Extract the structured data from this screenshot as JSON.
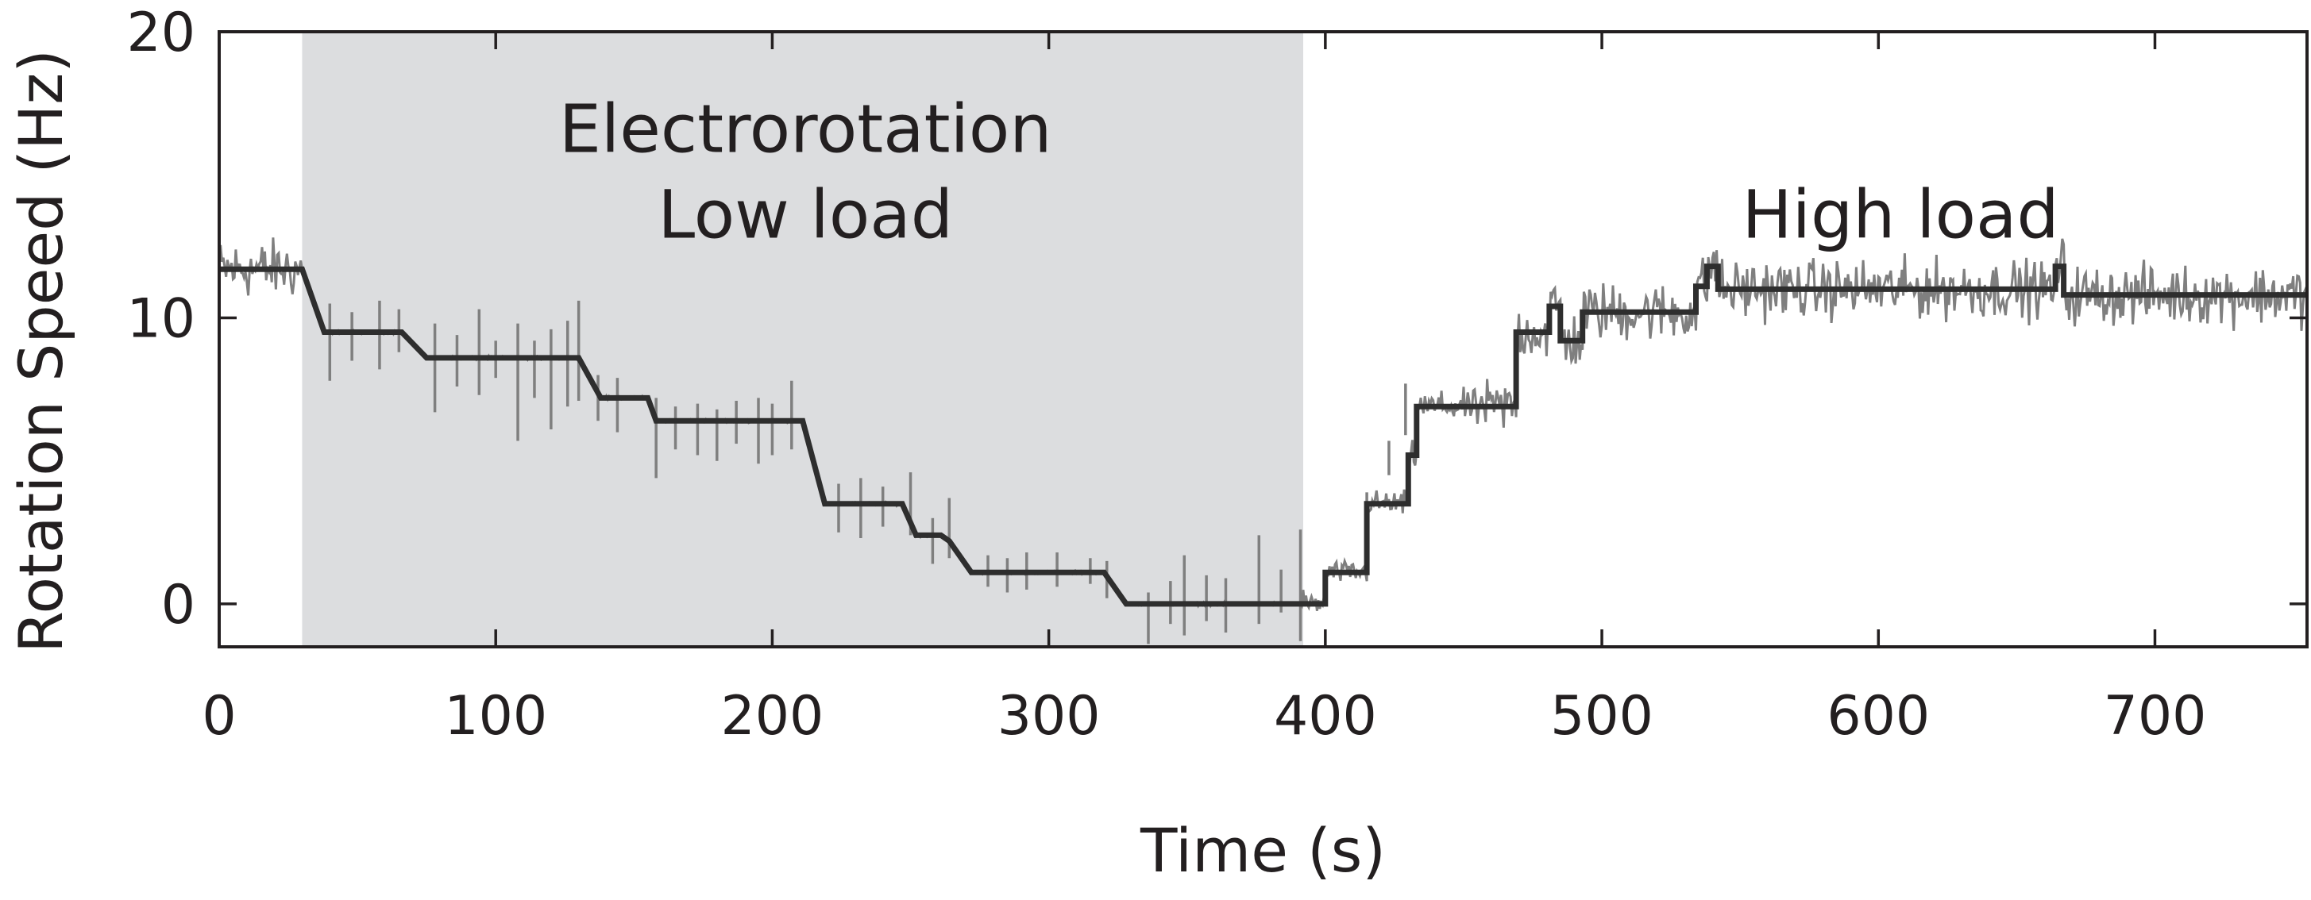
{
  "chart_data": {
    "type": "line",
    "xlabel": "Time (s)",
    "ylabel": "Rotation Speed (Hz)",
    "xlim": [
      0,
      755
    ],
    "ylim": [
      -1.5,
      20
    ],
    "xticks": [
      0,
      100,
      200,
      300,
      400,
      500,
      600,
      700
    ],
    "yticks": [
      0,
      10,
      20
    ],
    "grid": false,
    "shaded_region": {
      "x_start": 30,
      "x_end": 392,
      "color": "#dcdddf"
    },
    "annotations": [
      {
        "text": "Electrorotation",
        "x": 212,
        "y": 15.8
      },
      {
        "text": "Low load",
        "x": 212,
        "y": 12.8
      },
      {
        "text": "High load",
        "x": 608,
        "y": 12.8
      }
    ],
    "series": [
      {
        "style": "noisy-trace",
        "color": "#7f7f7f",
        "noise_amplitude": [
          {
            "from": 0,
            "to": 30,
            "amp": 0.9
          },
          {
            "from": 30,
            "to": 392,
            "amp": 0.05
          },
          {
            "from": 392,
            "to": 455,
            "amp": 0.6
          },
          {
            "from": 455,
            "to": 755,
            "amp": 0.9
          }
        ],
        "spikes": [
          {
            "x": 40,
            "lo": 7.8,
            "hi": 10.5
          },
          {
            "x": 48,
            "lo": 8.5,
            "hi": 10.2
          },
          {
            "x": 58,
            "lo": 8.2,
            "hi": 10.6
          },
          {
            "x": 65,
            "lo": 8.8,
            "hi": 10.3
          },
          {
            "x": 78,
            "lo": 6.7,
            "hi": 9.8
          },
          {
            "x": 86,
            "lo": 7.6,
            "hi": 9.4
          },
          {
            "x": 94,
            "lo": 7.3,
            "hi": 10.3
          },
          {
            "x": 100,
            "lo": 7.9,
            "hi": 9.2
          },
          {
            "x": 108,
            "lo": 5.7,
            "hi": 9.8
          },
          {
            "x": 114,
            "lo": 7.2,
            "hi": 9.2
          },
          {
            "x": 120,
            "lo": 6.1,
            "hi": 9.6
          },
          {
            "x": 126,
            "lo": 6.9,
            "hi": 9.9
          },
          {
            "x": 130,
            "lo": 7.1,
            "hi": 10.6
          },
          {
            "x": 137,
            "lo": 6.4,
            "hi": 8.0
          },
          {
            "x": 144,
            "lo": 6.0,
            "hi": 7.9
          },
          {
            "x": 158,
            "lo": 4.4,
            "hi": 7.2
          },
          {
            "x": 165,
            "lo": 5.4,
            "hi": 6.9
          },
          {
            "x": 173,
            "lo": 5.2,
            "hi": 7.0
          },
          {
            "x": 180,
            "lo": 5.0,
            "hi": 6.8
          },
          {
            "x": 187,
            "lo": 5.6,
            "hi": 7.1
          },
          {
            "x": 195,
            "lo": 4.9,
            "hi": 7.2
          },
          {
            "x": 200,
            "lo": 5.2,
            "hi": 7.0
          },
          {
            "x": 207,
            "lo": 5.4,
            "hi": 7.8
          },
          {
            "x": 224,
            "lo": 2.5,
            "hi": 4.2
          },
          {
            "x": 232,
            "lo": 2.3,
            "hi": 4.4
          },
          {
            "x": 240,
            "lo": 2.7,
            "hi": 4.1
          },
          {
            "x": 250,
            "lo": 2.4,
            "hi": 4.6
          },
          {
            "x": 258,
            "lo": 1.4,
            "hi": 3.0
          },
          {
            "x": 264,
            "lo": 1.6,
            "hi": 3.7
          },
          {
            "x": 278,
            "lo": 0.6,
            "hi": 1.7
          },
          {
            "x": 285,
            "lo": 0.4,
            "hi": 1.6
          },
          {
            "x": 292,
            "lo": 0.5,
            "hi": 1.8
          },
          {
            "x": 303,
            "lo": 0.6,
            "hi": 1.8
          },
          {
            "x": 315,
            "lo": 0.7,
            "hi": 1.6
          },
          {
            "x": 321,
            "lo": 0.2,
            "hi": 1.5
          },
          {
            "x": 336,
            "lo": -1.4,
            "hi": 0.4
          },
          {
            "x": 344,
            "lo": -0.7,
            "hi": 0.8
          },
          {
            "x": 349,
            "lo": -1.1,
            "hi": 1.7
          },
          {
            "x": 357,
            "lo": -0.6,
            "hi": 1.0
          },
          {
            "x": 364,
            "lo": -1.0,
            "hi": 0.9
          },
          {
            "x": 376,
            "lo": -0.7,
            "hi": 2.4
          },
          {
            "x": 384,
            "lo": -0.3,
            "hi": 1.2
          },
          {
            "x": 391,
            "lo": -1.3,
            "hi": 2.6
          },
          {
            "x": 415,
            "lo": 2.2,
            "hi": 3.9
          },
          {
            "x": 423,
            "lo": 4.5,
            "hi": 5.7
          },
          {
            "x": 429,
            "lo": 5.9,
            "hi": 7.7
          }
        ]
      },
      {
        "style": "step-fit",
        "color": "#2e2e2e",
        "x": [
          0,
          30,
          38,
          66,
          75,
          130,
          138,
          155,
          158,
          211,
          219,
          247,
          252,
          261,
          264,
          272,
          278,
          320,
          328,
          395,
          400,
          400,
          415,
          415,
          430,
          430,
          433,
          433,
          469,
          469,
          481,
          481,
          485,
          485,
          493,
          493,
          534,
          534,
          538,
          538,
          542,
          542,
          664,
          664,
          667,
          667,
          755
        ],
        "y": [
          11.7,
          11.7,
          9.5,
          9.5,
          8.6,
          8.6,
          7.2,
          7.2,
          6.4,
          6.4,
          3.5,
          3.5,
          2.4,
          2.4,
          2.2,
          1.1,
          1.1,
          1.1,
          0.0,
          0.0,
          0.0,
          1.1,
          1.1,
          3.5,
          3.5,
          5.2,
          5.2,
          6.9,
          6.9,
          9.5,
          9.5,
          10.4,
          10.4,
          9.2,
          9.2,
          10.2,
          10.2,
          11.1,
          11.1,
          11.8,
          11.8,
          11.0,
          11.0,
          11.8,
          11.8,
          10.8,
          10.8
        ]
      }
    ]
  }
}
